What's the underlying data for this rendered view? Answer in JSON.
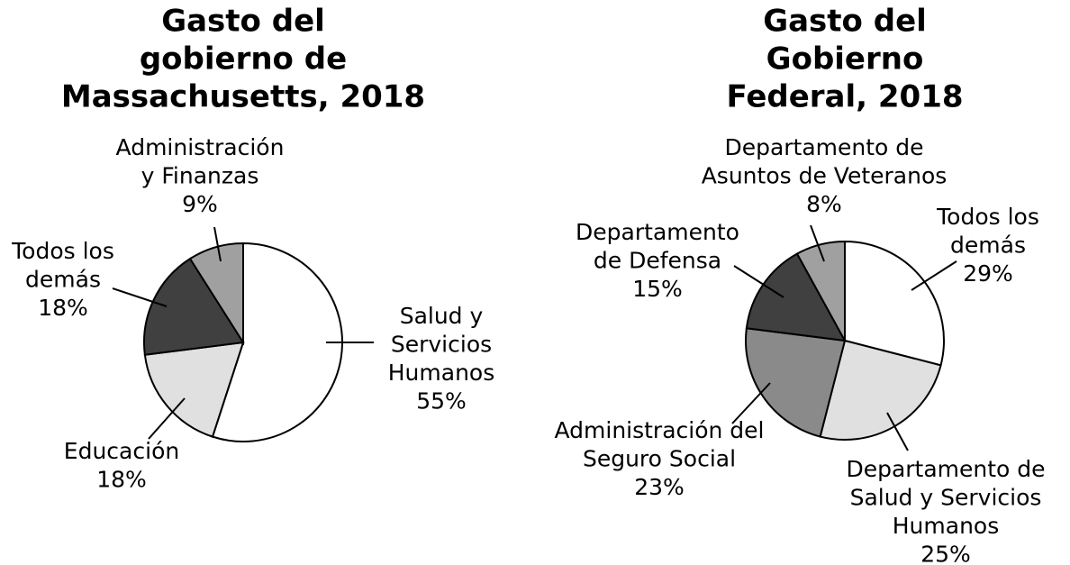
{
  "chart_data": [
    {
      "type": "pie",
      "title": [
        "Gasto del",
        "gobierno de",
        "Massachusetts, 2018"
      ],
      "categories": [
        [
          "Salud y",
          "Servicios",
          "Humanos"
        ],
        [
          "Educación"
        ],
        [
          "Todos los",
          "demás"
        ],
        [
          "Administración",
          "y Finanzas"
        ]
      ],
      "values": [
        55,
        18,
        18,
        9
      ],
      "value_labels": [
        "55%",
        "18%",
        "18%",
        "9%"
      ],
      "colors": [
        "#ffffff",
        "#e0e0e0",
        "#404040",
        "#a0a0a0"
      ]
    },
    {
      "type": "pie",
      "title": [
        "Gasto del",
        "Gobierno",
        "Federal, 2018"
      ],
      "categories": [
        [
          "Todos los",
          "demás"
        ],
        [
          "Departamento de",
          "Salud y Servicios",
          "Humanos"
        ],
        [
          "Administración del",
          "Seguro Social"
        ],
        [
          "Departamento",
          "de Defensa"
        ],
        [
          "Departamento de",
          "Asuntos de Veteranos"
        ]
      ],
      "values": [
        29,
        25,
        23,
        15,
        8
      ],
      "value_labels": [
        "29%",
        "25%",
        "23%",
        "15%",
        "8%"
      ],
      "colors": [
        "#ffffff",
        "#e0e0e0",
        "#8a8a8a",
        "#404040",
        "#a0a0a0"
      ]
    }
  ]
}
